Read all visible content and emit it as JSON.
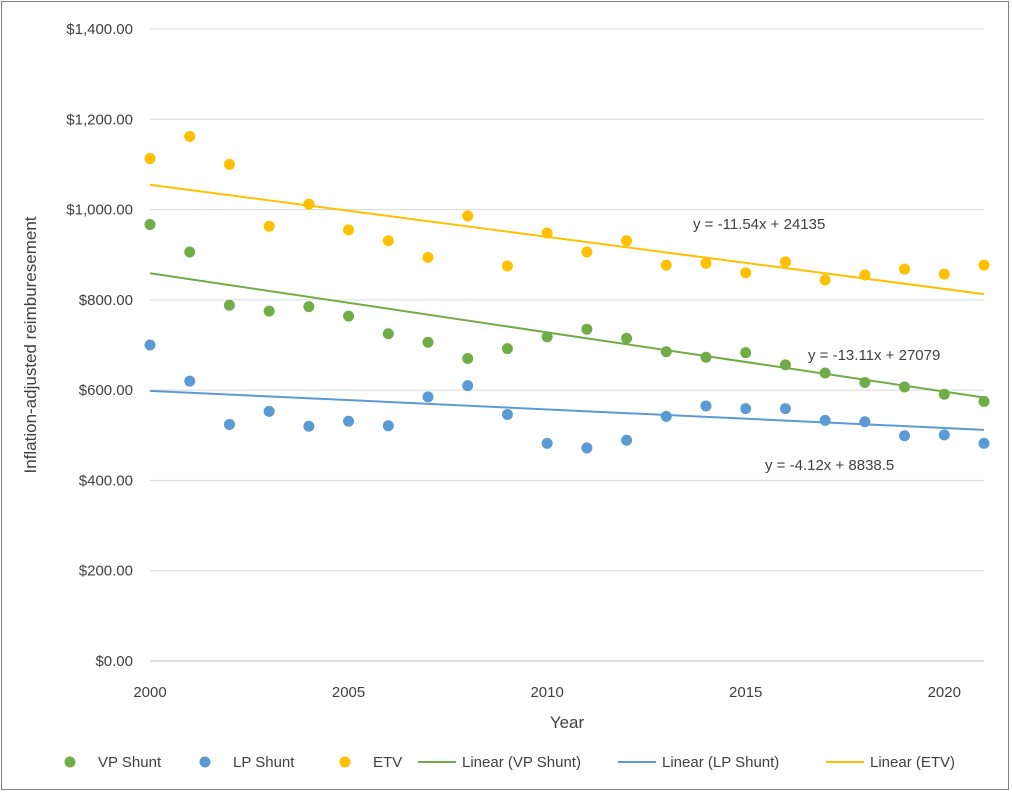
{
  "chart_data": {
    "type": "scatter",
    "title": "",
    "xlabel": "Year",
    "ylabel": "Inflation-adjusted reimburesement",
    "xlim": [
      2000,
      2021
    ],
    "ylim": [
      0,
      1400
    ],
    "x_ticks": [
      2000,
      2005,
      2010,
      2015,
      2020
    ],
    "y_ticks": [
      0,
      200,
      400,
      600,
      800,
      1000,
      1200,
      1400
    ],
    "y_tick_labels": [
      "$0.00",
      "$200.00",
      "$400.00",
      "$600.00",
      "$800.00",
      "$1,000.00",
      "$1,200.00",
      "$1,400.00"
    ],
    "grid": "horizontal",
    "legend_position": "bottom",
    "x": [
      2000,
      2001,
      2002,
      2003,
      2004,
      2005,
      2006,
      2007,
      2008,
      2009,
      2010,
      2011,
      2012,
      2013,
      2014,
      2015,
      2016,
      2017,
      2018,
      2019,
      2020,
      2021
    ],
    "series": [
      {
        "name": "VP Shunt",
        "color": "#70ad47",
        "values": [
          967,
          906,
          788,
          775,
          785,
          764,
          725,
          706,
          670,
          692,
          718,
          735,
          715,
          685,
          673,
          683,
          656,
          638,
          617,
          607,
          591,
          575
        ],
        "trendline": {
          "name": "Linear (VP Shunt)",
          "slope": -13.11,
          "intercept": 27079,
          "label": "y = -13.11x + 27079"
        }
      },
      {
        "name": "LP Shunt",
        "color": "#5b9bd5",
        "values": [
          700,
          620,
          524,
          553,
          520,
          531,
          521,
          585,
          610,
          546,
          482,
          472,
          489,
          542,
          565,
          559,
          559,
          533,
          530,
          499,
          501,
          482
        ],
        "trendline": {
          "name": "Linear (LP Shunt)",
          "slope": -4.12,
          "intercept": 8838.5,
          "label": "y = -4.12x + 8838.5"
        }
      },
      {
        "name": "ETV",
        "color": "#ffc000",
        "values": [
          1113,
          1162,
          1100,
          963,
          1012,
          955,
          931,
          894,
          986,
          875,
          948,
          906,
          931,
          877,
          881,
          860,
          884,
          844,
          855,
          868,
          857,
          877
        ],
        "trendline": {
          "name": "Linear (ETV)",
          "slope": -11.54,
          "intercept": 24135,
          "label": "y = -11.54x + 24135"
        }
      }
    ]
  }
}
